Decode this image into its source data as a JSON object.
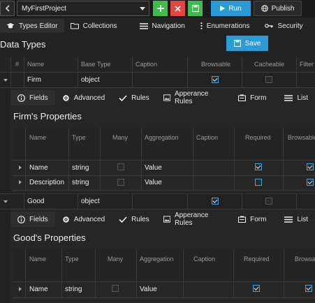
{
  "toolbar": {
    "back_icon": "chevron-left-icon",
    "project": "MyFirstProject",
    "add_icon": "plus-icon",
    "delete_icon": "x-icon",
    "save_icon": "floppy-icon",
    "run_label": "Run",
    "publish_label": "Publish"
  },
  "tabs": [
    {
      "label": "Types Editor",
      "icon": "graduation-cap-icon"
    },
    {
      "label": "Collections",
      "icon": "folder-icon"
    },
    {
      "label": "Navigation",
      "icon": "menu-icon"
    },
    {
      "label": "Enumerations",
      "icon": "vertical-dots-icon"
    },
    {
      "label": "Security",
      "icon": "key-icon"
    }
  ],
  "section_title": "Data Types",
  "save_label": "Save",
  "types_grid": {
    "columns": [
      "#",
      "Name",
      "Base Type",
      "Caption",
      "Browsable",
      "Cacheable",
      "Filter"
    ],
    "rows": [
      {
        "name": "Firm",
        "base_type": "object",
        "browsable": true,
        "cacheable": false
      },
      {
        "name": "Good",
        "base_type": "object",
        "browsable": true,
        "cacheable": false
      }
    ]
  },
  "subtabs": [
    "Fields",
    "Advanced",
    "Rules",
    "Apperance Rules",
    "Form",
    "List"
  ],
  "firm_props": {
    "title": "Firm's Properties",
    "columns": [
      "Name",
      "Type",
      "Many",
      "Aggregation",
      "Caption",
      "Required",
      "Browsable"
    ],
    "rows": [
      {
        "name": "Name",
        "type": "string",
        "many": false,
        "aggregation": "Value",
        "required": true,
        "browsable": true
      },
      {
        "name": "Description",
        "type": "string",
        "many": false,
        "aggregation": "Value",
        "required": false,
        "browsable": true
      }
    ]
  },
  "good_props": {
    "title": "Good's Properties",
    "columns": [
      "Name",
      "Type",
      "Many",
      "Aggregation",
      "Caption",
      "Required",
      "Browsable"
    ],
    "rows": [
      {
        "name": "Name",
        "type": "string",
        "many": false,
        "aggregation": "Value",
        "required": true,
        "browsable": true
      }
    ]
  },
  "colors": {
    "accent": "#2a9bd6",
    "green": "#3bbf4b",
    "red": "#e04848"
  }
}
